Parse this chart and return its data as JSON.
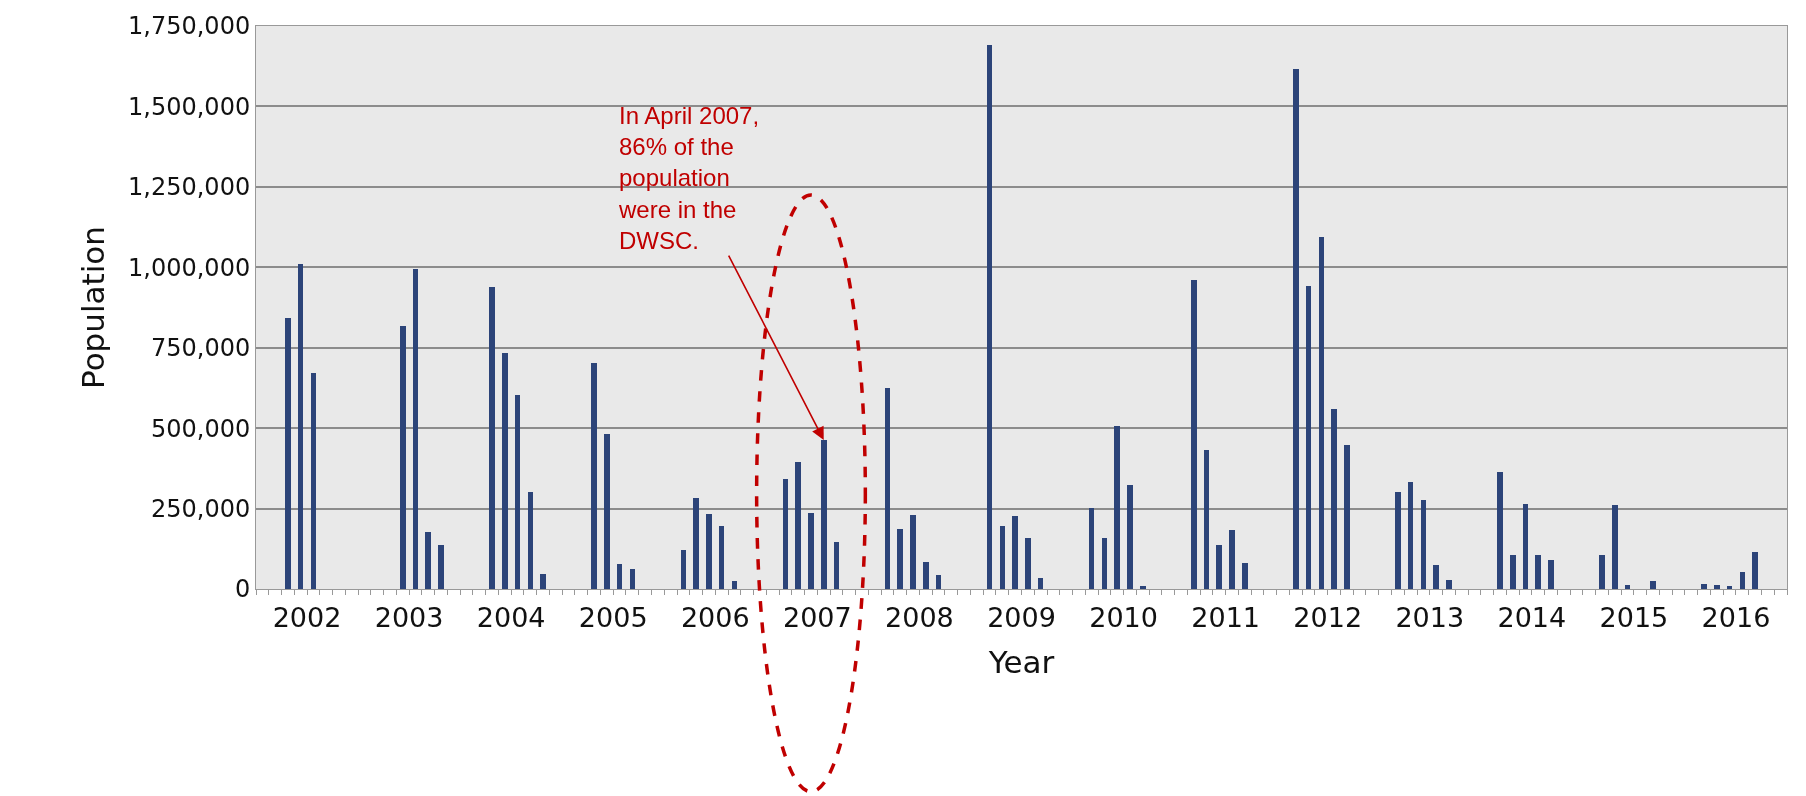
{
  "chart_data": {
    "type": "bar",
    "xlabel": "Year",
    "ylabel": "Population",
    "x": [
      2002.3125,
      2002.4375,
      2002.5625,
      2003.4375,
      2003.5625,
      2003.6875,
      2003.8125,
      2004.3125,
      2004.4375,
      2004.5625,
      2004.6875,
      2004.8125,
      2005.3125,
      2005.4375,
      2005.5625,
      2005.6875,
      2006.1875,
      2006.3125,
      2006.4375,
      2006.5625,
      2006.6875,
      2007.1875,
      2007.3125,
      2007.4375,
      2007.5625,
      2007.6875,
      2008.1875,
      2008.3125,
      2008.4375,
      2008.5625,
      2008.6875,
      2009.1875,
      2009.3125,
      2009.4375,
      2009.5625,
      2009.6875,
      2010.1875,
      2010.3125,
      2010.4375,
      2010.5625,
      2010.6875,
      2011.1875,
      2011.3125,
      2011.4375,
      2011.5625,
      2011.6875,
      2012.1875,
      2012.3125,
      2012.4375,
      2012.5625,
      2012.6875,
      2013.1875,
      2013.3125,
      2013.4375,
      2013.5625,
      2013.6875,
      2014.1875,
      2014.3125,
      2014.4375,
      2014.5625,
      2014.6875,
      2015.1875,
      2015.3125,
      2015.4375,
      2015.6875,
      2016.1875,
      2016.3125,
      2016.4375,
      2016.5625,
      2016.6875
    ],
    "values": [
      843000,
      1009000,
      672000,
      816000,
      995000,
      176000,
      137000,
      939000,
      734000,
      602000,
      302000,
      46000,
      703000,
      481000,
      79000,
      62000,
      121000,
      284000,
      232000,
      196000,
      26000,
      341000,
      396000,
      236000,
      463000,
      147000,
      626000,
      186000,
      230000,
      84000,
      44000,
      1692000,
      196000,
      226000,
      158000,
      33000,
      253000,
      159000,
      506000,
      322000,
      10000,
      959000,
      432000,
      136000,
      184000,
      81000,
      1615000,
      943000,
      1095000,
      561000,
      449000,
      303000,
      334000,
      276000,
      74000,
      28000,
      364000,
      105000,
      264000,
      105000,
      90000,
      105000,
      260000,
      12000,
      25000,
      15000,
      12000,
      10000,
      52000,
      115000
    ],
    "color": "#2c4479",
    "xlim": [
      2002,
      2017
    ],
    "xticks": [
      {
        "value": 2002,
        "label": null
      },
      {
        "value": 2002.125,
        "label": null
      },
      {
        "value": 2002.25,
        "label": null
      },
      {
        "value": 2002.375,
        "label": null
      },
      {
        "value": 2002.5,
        "label": "2002"
      },
      {
        "value": 2002.625,
        "label": null
      },
      {
        "value": 2002.75,
        "label": null
      },
      {
        "value": 2002.875,
        "label": null
      },
      {
        "value": 2003,
        "label": null
      },
      {
        "value": 2003.125,
        "label": null
      },
      {
        "value": 2003.25,
        "label": null
      },
      {
        "value": 2003.375,
        "label": null
      },
      {
        "value": 2003.5,
        "label": "2003"
      },
      {
        "value": 2003.625,
        "label": null
      },
      {
        "value": 2003.75,
        "label": null
      },
      {
        "value": 2003.875,
        "label": null
      },
      {
        "value": 2004,
        "label": null
      },
      {
        "value": 2004.125,
        "label": null
      },
      {
        "value": 2004.25,
        "label": null
      },
      {
        "value": 2004.375,
        "label": null
      },
      {
        "value": 2004.5,
        "label": "2004"
      },
      {
        "value": 2004.625,
        "label": null
      },
      {
        "value": 2004.75,
        "label": null
      },
      {
        "value": 2004.875,
        "label": null
      },
      {
        "value": 2005,
        "label": null
      },
      {
        "value": 2005.125,
        "label": null
      },
      {
        "value": 2005.25,
        "label": null
      },
      {
        "value": 2005.375,
        "label": null
      },
      {
        "value": 2005.5,
        "label": "2005"
      },
      {
        "value": 2005.625,
        "label": null
      },
      {
        "value": 2005.75,
        "label": null
      },
      {
        "value": 2005.875,
        "label": null
      },
      {
        "value": 2006,
        "label": null
      },
      {
        "value": 2006.125,
        "label": null
      },
      {
        "value": 2006.25,
        "label": null
      },
      {
        "value": 2006.375,
        "label": null
      },
      {
        "value": 2006.5,
        "label": "2006"
      },
      {
        "value": 2006.625,
        "label": null
      },
      {
        "value": 2006.75,
        "label": null
      },
      {
        "value": 2006.875,
        "label": null
      },
      {
        "value": 2007,
        "label": null
      },
      {
        "value": 2007.125,
        "label": null
      },
      {
        "value": 2007.25,
        "label": null
      },
      {
        "value": 2007.375,
        "label": null
      },
      {
        "value": 2007.5,
        "label": "2007"
      },
      {
        "value": 2007.625,
        "label": null
      },
      {
        "value": 2007.75,
        "label": null
      },
      {
        "value": 2007.875,
        "label": null
      },
      {
        "value": 2008,
        "label": null
      },
      {
        "value": 2008.125,
        "label": null
      },
      {
        "value": 2008.25,
        "label": null
      },
      {
        "value": 2008.375,
        "label": null
      },
      {
        "value": 2008.5,
        "label": "2008"
      },
      {
        "value": 2008.625,
        "label": null
      },
      {
        "value": 2008.75,
        "label": null
      },
      {
        "value": 2008.875,
        "label": null
      },
      {
        "value": 2009,
        "label": null
      },
      {
        "value": 2009.125,
        "label": null
      },
      {
        "value": 2009.25,
        "label": null
      },
      {
        "value": 2009.375,
        "label": null
      },
      {
        "value": 2009.5,
        "label": "2009"
      },
      {
        "value": 2009.625,
        "label": null
      },
      {
        "value": 2009.75,
        "label": null
      },
      {
        "value": 2009.875,
        "label": null
      },
      {
        "value": 2010,
        "label": null
      },
      {
        "value": 2010.125,
        "label": null
      },
      {
        "value": 2010.25,
        "label": null
      },
      {
        "value": 2010.375,
        "label": null
      },
      {
        "value": 2010.5,
        "label": "2010"
      },
      {
        "value": 2010.625,
        "label": null
      },
      {
        "value": 2010.75,
        "label": null
      },
      {
        "value": 2010.875,
        "label": null
      },
      {
        "value": 2011,
        "label": null
      },
      {
        "value": 2011.125,
        "label": null
      },
      {
        "value": 2011.25,
        "label": null
      },
      {
        "value": 2011.375,
        "label": null
      },
      {
        "value": 2011.5,
        "label": "2011"
      },
      {
        "value": 2011.625,
        "label": null
      },
      {
        "value": 2011.75,
        "label": null
      },
      {
        "value": 2011.875,
        "label": null
      },
      {
        "value": 2012,
        "label": null
      },
      {
        "value": 2012.125,
        "label": null
      },
      {
        "value": 2012.25,
        "label": null
      },
      {
        "value": 2012.375,
        "label": null
      },
      {
        "value": 2012.5,
        "label": "2012"
      },
      {
        "value": 2012.625,
        "label": null
      },
      {
        "value": 2012.75,
        "label": null
      },
      {
        "value": 2012.875,
        "label": null
      },
      {
        "value": 2013,
        "label": null
      },
      {
        "value": 2013.125,
        "label": null
      },
      {
        "value": 2013.25,
        "label": null
      },
      {
        "value": 2013.375,
        "label": null
      },
      {
        "value": 2013.5,
        "label": "2013"
      },
      {
        "value": 2013.625,
        "label": null
      },
      {
        "value": 2013.75,
        "label": null
      },
      {
        "value": 2013.875,
        "label": null
      },
      {
        "value": 2014,
        "label": null
      },
      {
        "value": 2014.125,
        "label": null
      },
      {
        "value": 2014.25,
        "label": null
      },
      {
        "value": 2014.375,
        "label": null
      },
      {
        "value": 2014.5,
        "label": "2014"
      },
      {
        "value": 2014.625,
        "label": null
      },
      {
        "value": 2014.75,
        "label": null
      },
      {
        "value": 2014.875,
        "label": null
      },
      {
        "value": 2015,
        "label": null
      },
      {
        "value": 2015.125,
        "label": null
      },
      {
        "value": 2015.25,
        "label": null
      },
      {
        "value": 2015.375,
        "label": null
      },
      {
        "value": 2015.5,
        "label": "2015"
      },
      {
        "value": 2015.625,
        "label": null
      },
      {
        "value": 2015.75,
        "label": null
      },
      {
        "value": 2015.875,
        "label": null
      },
      {
        "value": 2016,
        "label": null
      },
      {
        "value": 2016.125,
        "label": null
      },
      {
        "value": 2016.25,
        "label": null
      },
      {
        "value": 2016.375,
        "label": null
      },
      {
        "value": 2016.5,
        "label": "2016"
      },
      {
        "value": 2016.625,
        "label": null
      },
      {
        "value": 2016.75,
        "label": null
      },
      {
        "value": 2016.875,
        "label": null
      },
      {
        "value": 2017,
        "label": null
      }
    ],
    "ylim": [
      0,
      1750000
    ],
    "yticks": [
      0,
      {
        "value": 250000,
        "label": "250,000"
      },
      {
        "value": 500000,
        "label": "500,000"
      },
      {
        "value": 750000,
        "label": "750,000"
      },
      {
        "value": 1000000,
        "label": "1,000,000"
      },
      {
        "value": 1250000,
        "label": "1,250,000"
      },
      {
        "value": 1500000,
        "label": "1,500,000"
      },
      {
        "value": 1750000,
        "label": "1,750,000"
      }
    ],
    "grid": "y",
    "legend": false,
    "annotations": [
      {
        "text": "In April 2007,\n86% of the\npopulation\nwere in the\nDWSC.",
        "x": 2007.5625,
        "y": 463000
      }
    ]
  }
}
